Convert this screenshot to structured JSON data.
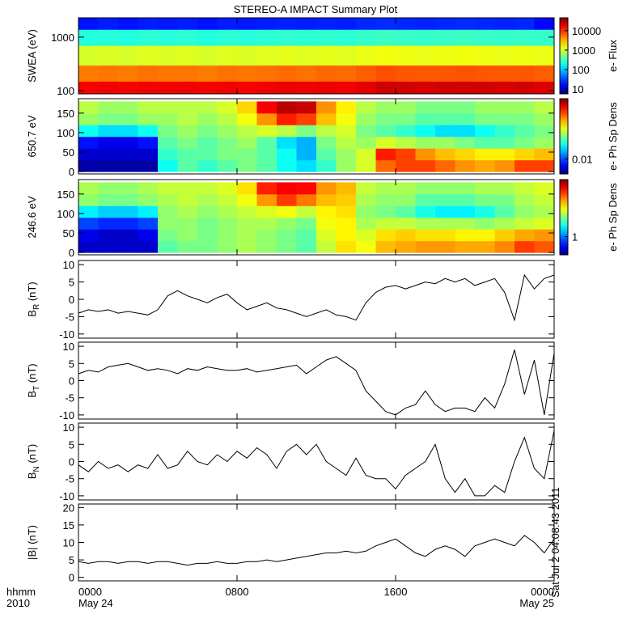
{
  "title": "STEREO-A IMPACT Summary Plot",
  "note": "Sat Jul  2 04:08:43 2011",
  "x_axis": {
    "xlim": [
      0,
      24
    ],
    "xticks": [
      {
        "value": 0,
        "label": "0000"
      },
      {
        "value": 8,
        "label": "0800"
      },
      {
        "value": 16,
        "label": "1600"
      },
      {
        "value": 24,
        "label": "0000"
      }
    ],
    "dates": [
      {
        "value": 0,
        "label": "May 24"
      },
      {
        "value": 24,
        "label": "May 25"
      }
    ],
    "label_lines": [
      "hhmm",
      "2010"
    ],
    "bins": [
      0,
      1,
      2,
      3,
      4,
      5,
      6,
      7,
      8,
      9,
      10,
      11,
      12,
      13,
      14,
      15,
      16,
      17,
      18,
      19,
      20,
      21,
      22,
      23,
      24
    ],
    "times": [
      0,
      0.5,
      1,
      1.5,
      2,
      2.5,
      3,
      3.5,
      4,
      4.5,
      5,
      5.5,
      6,
      6.5,
      7,
      7.5,
      8,
      8.5,
      9,
      9.5,
      10,
      10.5,
      11,
      11.5,
      12,
      12.5,
      13,
      13.5,
      14,
      14.5,
      15,
      15.5,
      16,
      16.5,
      17,
      17.5,
      18,
      18.5,
      19,
      19.5,
      20,
      20.5,
      21,
      21.5,
      22,
      22.5,
      23,
      23.5,
      24
    ]
  },
  "chart_data": [
    {
      "type": "heatmap",
      "ylabel": "SWEA (eV)",
      "ylog": true,
      "ylim": [
        87,
        2300
      ],
      "yticks": [
        100,
        1000
      ],
      "y_bins": [
        87,
        150,
        300,
        700,
        1400,
        2300
      ],
      "clabel": "e- Flux",
      "clim": [
        5.6,
        46000
      ],
      "cticks": [
        10,
        100,
        1000,
        10000
      ],
      "z": [
        [
          16000,
          17000,
          16000,
          17000,
          16500,
          17000,
          16000,
          17000,
          16000,
          17000,
          18000,
          17000,
          18000,
          17000,
          19000,
          23000,
          22000,
          21000,
          22000,
          23000,
          22000,
          21000,
          22000,
          20000
        ],
        [
          5000,
          5200,
          5000,
          5500,
          5200,
          5300,
          5000,
          5500,
          5300,
          5500,
          5800,
          5500,
          6000,
          5800,
          6500,
          7500,
          7000,
          6800,
          7000,
          7200,
          7000,
          6800,
          7000,
          6500
        ],
        [
          1100,
          1150,
          1100,
          1200,
          1150,
          1200,
          1100,
          1200,
          1150,
          1200,
          1250,
          1200,
          1250,
          1200,
          1300,
          1400,
          1350,
          1300,
          1350,
          1400,
          1350,
          1300,
          1350,
          1300
        ],
        [
          220,
          230,
          220,
          240,
          230,
          240,
          220,
          240,
          230,
          240,
          250,
          240,
          250,
          240,
          260,
          280,
          270,
          260,
          270,
          280,
          270,
          260,
          270,
          260
        ],
        [
          20,
          22,
          20,
          22,
          21,
          22,
          20,
          22,
          21,
          22,
          23,
          22,
          23,
          22,
          24,
          25,
          24,
          23,
          24,
          25,
          24,
          23,
          24,
          18
        ]
      ]
    },
    {
      "type": "heatmap",
      "ylabel": "650.7 eV",
      "ylim": [
        -6,
        187
      ],
      "yticks": [
        0,
        50,
        100,
        150
      ],
      "y_bins": [
        0,
        30,
        60,
        90,
        120,
        150,
        180
      ],
      "clabel": "e- Ph Sp Dens",
      "clim": [
        0.007,
        0.042
      ],
      "cticks": [
        0.01
      ],
      "z": [
        [
          0.0075,
          0.0075,
          0.0075,
          0.0075,
          0.014,
          0.016,
          0.015,
          0.016,
          0.017,
          0.016,
          0.014,
          0.013,
          0.015,
          0.018,
          0.02,
          0.028,
          0.03,
          0.03,
          0.028,
          0.026,
          0.025,
          0.026,
          0.03,
          0.03
        ],
        [
          0.008,
          0.008,
          0.008,
          0.008,
          0.015,
          0.016,
          0.016,
          0.017,
          0.017,
          0.016,
          0.014,
          0.012,
          0.016,
          0.018,
          0.02,
          0.032,
          0.03,
          0.026,
          0.024,
          0.023,
          0.022,
          0.022,
          0.023,
          0.024
        ],
        [
          0.009,
          0.0085,
          0.0085,
          0.009,
          0.016,
          0.017,
          0.016,
          0.017,
          0.018,
          0.016,
          0.013,
          0.012,
          0.017,
          0.019,
          0.018,
          0.02,
          0.019,
          0.018,
          0.018,
          0.017,
          0.016,
          0.016,
          0.017,
          0.018
        ],
        [
          0.014,
          0.013,
          0.013,
          0.014,
          0.017,
          0.018,
          0.017,
          0.018,
          0.019,
          0.02,
          0.019,
          0.017,
          0.019,
          0.02,
          0.017,
          0.016,
          0.015,
          0.014,
          0.013,
          0.013,
          0.014,
          0.015,
          0.016,
          0.017
        ],
        [
          0.018,
          0.017,
          0.017,
          0.018,
          0.018,
          0.019,
          0.018,
          0.019,
          0.021,
          0.026,
          0.032,
          0.03,
          0.024,
          0.021,
          0.018,
          0.017,
          0.017,
          0.016,
          0.016,
          0.016,
          0.017,
          0.017,
          0.017,
          0.018
        ],
        [
          0.019,
          0.018,
          0.018,
          0.019,
          0.019,
          0.019,
          0.019,
          0.02,
          0.023,
          0.034,
          0.038,
          0.037,
          0.026,
          0.022,
          0.019,
          0.018,
          0.018,
          0.017,
          0.017,
          0.017,
          0.018,
          0.018,
          0.018,
          0.019
        ]
      ]
    },
    {
      "type": "heatmap",
      "ylabel": "246.6 eV",
      "ylim": [
        -6,
        187
      ],
      "yticks": [
        0,
        50,
        100,
        150
      ],
      "y_bins": [
        0,
        30,
        60,
        90,
        120,
        150,
        180
      ],
      "clabel": "e- Ph Sp Dens",
      "clim": [
        0.6,
        5.0
      ],
      "cticks": [
        1
      ],
      "z": [
        [
          0.7,
          0.7,
          0.7,
          0.7,
          1.6,
          1.7,
          1.7,
          1.8,
          1.9,
          1.8,
          1.7,
          1.6,
          2.0,
          2.4,
          2.2,
          2.6,
          2.7,
          2.8,
          2.8,
          2.7,
          2.7,
          2.9,
          3.4,
          3.2
        ],
        [
          0.75,
          0.7,
          0.7,
          0.75,
          1.7,
          1.8,
          1.7,
          1.8,
          1.9,
          1.8,
          1.7,
          1.6,
          2.1,
          2.3,
          2.1,
          2.4,
          2.5,
          2.4,
          2.4,
          2.3,
          2.3,
          2.5,
          2.7,
          2.8
        ],
        [
          0.9,
          0.85,
          0.85,
          0.9,
          1.8,
          1.8,
          1.7,
          1.8,
          1.9,
          1.9,
          1.8,
          1.7,
          2.2,
          2.3,
          1.9,
          2.0,
          2.0,
          1.9,
          1.9,
          1.9,
          1.8,
          1.9,
          2.0,
          2.1
        ],
        [
          1.3,
          1.2,
          1.2,
          1.3,
          1.8,
          1.9,
          1.8,
          1.9,
          2.0,
          2.1,
          2.2,
          2.0,
          2.3,
          2.4,
          1.8,
          1.7,
          1.6,
          1.4,
          1.3,
          1.3,
          1.4,
          1.6,
          1.8,
          1.9
        ],
        [
          1.8,
          1.7,
          1.7,
          1.8,
          1.9,
          2.0,
          1.9,
          2.0,
          2.2,
          2.8,
          3.4,
          3.0,
          2.6,
          2.5,
          1.9,
          1.8,
          1.8,
          1.6,
          1.6,
          1.6,
          1.7,
          1.7,
          1.9,
          2.0
        ],
        [
          1.9,
          1.8,
          1.8,
          1.9,
          2.0,
          2.0,
          2.0,
          2.1,
          2.4,
          3.6,
          3.9,
          3.8,
          2.8,
          2.6,
          2.0,
          1.9,
          1.9,
          1.8,
          1.8,
          1.8,
          1.9,
          1.9,
          2.0,
          2.1
        ]
      ]
    },
    {
      "type": "line",
      "ylabel": "B",
      "ylabel_sub": "R",
      "ylabel_unit": " (nT)",
      "ylim": [
        -11.2,
        11.2
      ],
      "yticks": [
        -10,
        -5,
        0,
        5,
        10
      ],
      "color": "#000000",
      "values": [
        -4,
        -3,
        -3.5,
        -3,
        -4,
        -3.5,
        -4,
        -4.5,
        -3,
        1,
        2.5,
        1,
        0,
        -1,
        0.5,
        1.5,
        -1,
        -3,
        -2,
        -1,
        -2.5,
        -3,
        -4,
        -5,
        -4,
        -3,
        -4.5,
        -5,
        -6,
        -1,
        2,
        3.5,
        4,
        3,
        4,
        5,
        4.5,
        6,
        5,
        6,
        4,
        5,
        6,
        2,
        -6,
        7,
        3,
        6,
        7
      ]
    },
    {
      "type": "line",
      "ylabel": "B",
      "ylabel_sub": "T",
      "ylabel_unit": " (nT)",
      "ylim": [
        -11.2,
        11.2
      ],
      "yticks": [
        -10,
        -5,
        0,
        5,
        10
      ],
      "color": "#000000",
      "values": [
        2,
        3,
        2.5,
        4,
        4.5,
        5,
        4,
        3,
        3.5,
        3,
        2,
        3.5,
        3,
        4,
        3.5,
        3,
        3,
        3.5,
        2.5,
        3,
        3.5,
        4,
        4.5,
        2,
        4,
        6,
        7,
        5,
        3,
        -3,
        -6,
        -9,
        -10,
        -8,
        -7,
        -3,
        -7,
        -9,
        -8,
        -8,
        -9,
        -5,
        -8,
        -1,
        9,
        -4,
        6,
        -10,
        8
      ]
    },
    {
      "type": "line",
      "ylabel": "B",
      "ylabel_sub": "N",
      "ylabel_unit": " (nT)",
      "ylim": [
        -11.2,
        11.2
      ],
      "yticks": [
        -10,
        -5,
        0,
        5,
        10
      ],
      "color": "#000000",
      "values": [
        -1,
        -3,
        0,
        -2,
        -1,
        -3,
        -1,
        -2,
        2,
        -2,
        -1,
        3,
        0,
        -1,
        2,
        0,
        3,
        1,
        4,
        2,
        -2,
        3,
        5,
        2,
        5,
        0,
        -2,
        -4,
        1,
        -4,
        -5,
        -5,
        -8,
        -4,
        -2,
        0,
        5,
        -5,
        -9,
        -5,
        -10,
        -10,
        -7,
        -9,
        0,
        7,
        -2,
        -5,
        9
      ]
    },
    {
      "type": "line",
      "ylabel": "|B| (nT)",
      "ylim": [
        -1,
        21
      ],
      "yticks": [
        0,
        5,
        10,
        15,
        20
      ],
      "color": "#000000",
      "values": [
        4.5,
        4,
        4.5,
        4.5,
        4,
        4.5,
        4.5,
        4,
        4.5,
        4.5,
        4,
        3.5,
        4,
        4,
        4.5,
        4,
        4,
        4.5,
        4.5,
        5,
        4.5,
        5,
        5.5,
        6,
        6.5,
        7,
        7,
        7.5,
        7,
        7.5,
        9,
        10,
        11,
        9,
        7,
        6,
        8,
        9,
        8,
        6,
        9,
        10,
        11,
        10,
        9,
        12,
        10,
        7,
        11
      ]
    }
  ]
}
